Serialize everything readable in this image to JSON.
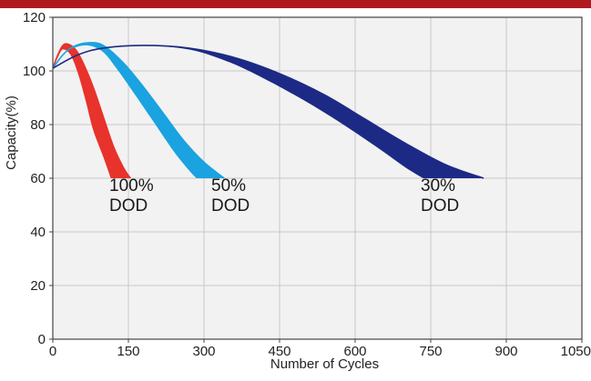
{
  "colors": {
    "top_band": "#b01a1f",
    "plot_background": "#f2f2f2",
    "grid": "#c8c8c8",
    "frame": "#444444"
  },
  "chart_data": {
    "type": "area",
    "xlabel": "Number of Cycles",
    "ylabel": "Capacity(%)",
    "xlim": [
      0,
      1050
    ],
    "ylim": [
      0,
      120
    ],
    "x_ticks": [
      "0",
      "150",
      "300",
      "450",
      "600",
      "750",
      "900",
      "1050"
    ],
    "y_ticks": [
      "0",
      "20",
      "40",
      "60",
      "80",
      "100",
      "120"
    ],
    "grid": true,
    "series": [
      {
        "label_lines": [
          "100%",
          "DOD"
        ],
        "color": "#e8322c",
        "upper_boundary": [
          [
            0,
            101
          ],
          [
            10,
            106
          ],
          [
            20,
            109.5
          ],
          [
            30,
            110
          ],
          [
            45,
            108
          ],
          [
            60,
            103
          ],
          [
            80,
            94
          ],
          [
            100,
            83
          ],
          [
            120,
            72
          ],
          [
            140,
            64
          ],
          [
            154,
            60
          ]
        ],
        "lower_boundary": [
          [
            0,
            101
          ],
          [
            10,
            105
          ],
          [
            20,
            108
          ],
          [
            35,
            106
          ],
          [
            50,
            99
          ],
          [
            65,
            89
          ],
          [
            80,
            78
          ],
          [
            100,
            68
          ],
          [
            115,
            60
          ]
        ]
      },
      {
        "label_lines": [
          "50%",
          "DOD"
        ],
        "color": "#1aa3e0",
        "upper_boundary": [
          [
            0,
            101
          ],
          [
            20,
            106
          ],
          [
            40,
            109
          ],
          [
            70,
            110.5
          ],
          [
            100,
            109.5
          ],
          [
            140,
            103
          ],
          [
            180,
            94
          ],
          [
            220,
            84
          ],
          [
            260,
            74
          ],
          [
            300,
            66
          ],
          [
            340,
            60
          ]
        ],
        "lower_boundary": [
          [
            0,
            101
          ],
          [
            20,
            106
          ],
          [
            40,
            108.5
          ],
          [
            70,
            109.5
          ],
          [
            100,
            107
          ],
          [
            130,
            100
          ],
          [
            160,
            92
          ],
          [
            200,
            81
          ],
          [
            240,
            70
          ],
          [
            270,
            63
          ],
          [
            285,
            60
          ]
        ]
      },
      {
        "label_lines": [
          "30%",
          "DOD"
        ],
        "color": "#1c2a86",
        "upper_boundary": [
          [
            0,
            101
          ],
          [
            50,
            106
          ],
          [
            100,
            108.5
          ],
          [
            180,
            109.5
          ],
          [
            270,
            108.5
          ],
          [
            360,
            105
          ],
          [
            450,
            99
          ],
          [
            540,
            91
          ],
          [
            620,
            82
          ],
          [
            700,
            73
          ],
          [
            780,
            65
          ],
          [
            855,
            60
          ]
        ],
        "lower_boundary": [
          [
            0,
            101
          ],
          [
            50,
            106
          ],
          [
            100,
            108.5
          ],
          [
            180,
            109.5
          ],
          [
            270,
            108
          ],
          [
            340,
            104
          ],
          [
            400,
            99
          ],
          [
            480,
            91
          ],
          [
            560,
            82
          ],
          [
            640,
            72
          ],
          [
            700,
            64
          ],
          [
            735,
            60
          ]
        ]
      }
    ]
  }
}
